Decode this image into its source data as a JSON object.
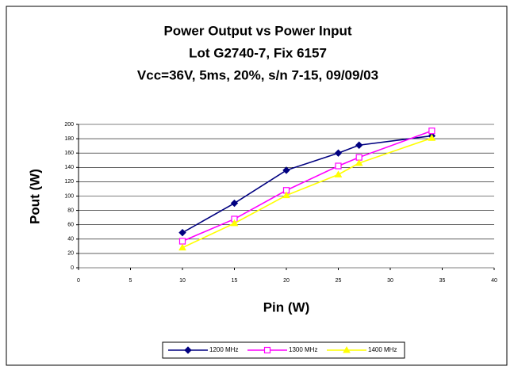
{
  "chart_data": {
    "type": "line",
    "title": [
      "Power Output vs Power Input",
      "Lot G2740-7, Fix 6157",
      "Vcc=36V, 5ms, 20%, s/n 7-15, 09/09/03"
    ],
    "x_label": "Pin (W)",
    "y_label": "Pout (W)",
    "x": [
      10,
      15,
      20,
      25,
      27,
      34
    ],
    "series": [
      {
        "name": "1200 MHz",
        "color": "#000080",
        "marker": "diamond",
        "values": [
          49,
          90,
          136,
          160,
          171,
          184
        ]
      },
      {
        "name": "1300 MHz",
        "color": "#ff00ff",
        "marker": "square",
        "values": [
          37,
          68,
          108,
          142,
          154,
          191
        ]
      },
      {
        "name": "1400 MHz",
        "color": "#ffff00",
        "marker": "triangle",
        "values": [
          28,
          62,
          101,
          130,
          146,
          181
        ]
      }
    ],
    "xlim": [
      0,
      40
    ],
    "xticks": [
      0,
      5,
      10,
      15,
      20,
      25,
      30,
      35,
      40
    ],
    "ylim": [
      0,
      200
    ],
    "yticks": [
      0,
      20,
      40,
      60,
      80,
      100,
      120,
      140,
      160,
      180,
      200
    ],
    "grid": true,
    "legend": "bottom"
  }
}
